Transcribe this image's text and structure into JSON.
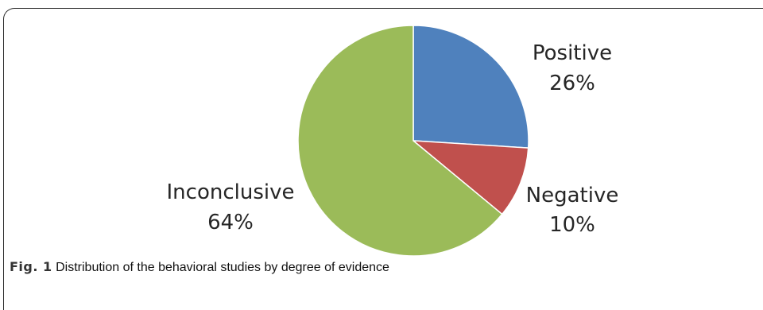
{
  "chart_data": {
    "type": "pie",
    "title": "",
    "slices": [
      {
        "label": "Positive",
        "value": 26,
        "value_label": "26%",
        "color": "#4F81BD"
      },
      {
        "label": "Negative",
        "value": 10,
        "value_label": "10%",
        "color": "#C0504D"
      },
      {
        "label": "Inconclusive",
        "value": 64,
        "value_label": "64%",
        "color": "#9BBB59"
      }
    ],
    "start_angle": "12 o'clock",
    "direction": "clockwise",
    "legend": "none"
  },
  "caption": {
    "fig_label": "Fig. 1",
    "text": "Distribution of the behavioral studies by degree of evidence"
  }
}
